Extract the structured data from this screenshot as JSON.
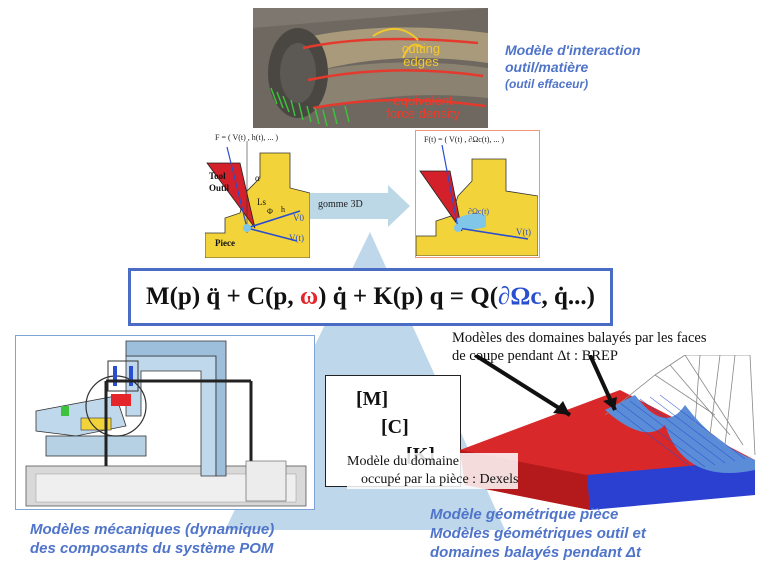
{
  "top_photo": {
    "label_cutting": "cutting edges",
    "label_cutting_line1": "cutting",
    "label_cutting_line2": "edges",
    "label_force_line1": "equivalent",
    "label_force_line2": "force density"
  },
  "top_caption": {
    "line1": "Modèle d'interaction",
    "line2": "outil/matière",
    "line3": "(outil effaceur)"
  },
  "left_inset": {
    "force": "F = ( V(t) , h(t), ... )",
    "tool": "Tool",
    "outil": "Outil",
    "piece": "Piece",
    "alpha": "α",
    "ls": "Ls",
    "phi": "Φ",
    "h": "h",
    "v0": "V0",
    "vt": "V(t)"
  },
  "arrow_label": "gomme 3D",
  "right_inset": {
    "force": "F(t) = ( V(t) , ∂Ωc(t), ... )",
    "domain": "∂Ωc(t)",
    "vt": "V(t)"
  },
  "formula": {
    "part1": "M(p) q̈ + C(p, ",
    "omega": "ω",
    "part2": ") q̇ + K(p) q = Q(",
    "domain": "∂Ωc",
    "part3": ", q̇...)"
  },
  "matrices": {
    "m": "[M]",
    "c": "[C]",
    "k": "[K]"
  },
  "right_notes": {
    "brep_line1": "Modèles des domaines balayés par les faces",
    "brep_line2": "de coupe pendant Δt : BREP",
    "dexel_line1": "Modèle du domaine",
    "dexel_line2": "occupé par la pièce : Dexels"
  },
  "bottom_left_caption": {
    "line1": "Modèles mécaniques (dynamique)",
    "line2": "des composants du système POM"
  },
  "bottom_right_caption": {
    "line1": "Modèle géométrique pièce",
    "line2": "Modèles géométriques outil et",
    "line3": "domaines balayés pendant Δt"
  },
  "colors": {
    "accent_blue": "#4f74c9",
    "frame_blue": "#4a6cc4",
    "tool_red": "#d4202a",
    "piece_yellow": "#f2d43a"
  }
}
